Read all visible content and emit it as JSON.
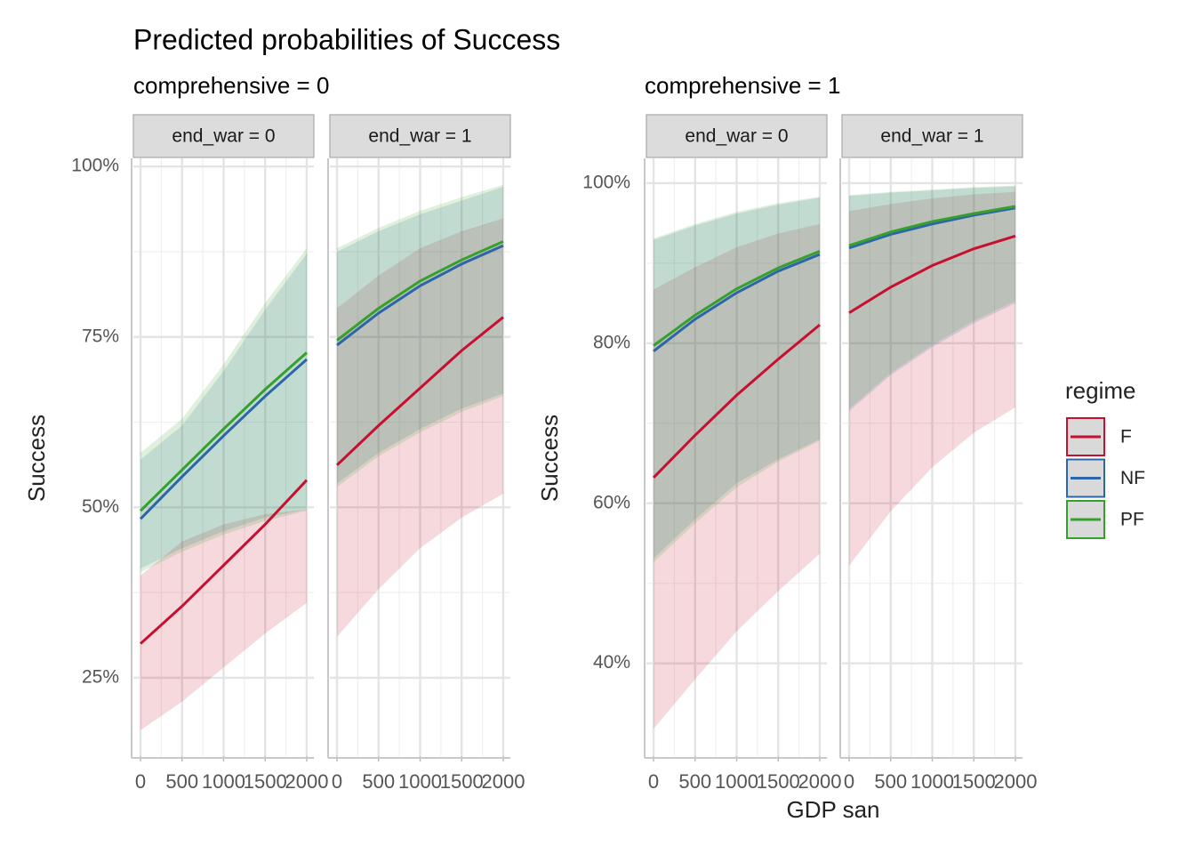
{
  "chart_data": [
    {
      "type": "line",
      "title": "Predicted probabilities of Success",
      "subtitle": "comprehensive = 0",
      "ylabel": "Success",
      "x": [
        0,
        500,
        1000,
        1500,
        2000
      ],
      "xlim": [
        -86,
        2086
      ],
      "xticks": [
        0,
        500,
        1000,
        1500,
        2000
      ],
      "ylim": [
        13.5,
        101.2
      ],
      "yticks": [
        {
          "value": 25,
          "label": "25%"
        },
        {
          "value": 50,
          "label": "50%"
        },
        {
          "value": 75,
          "label": "75%"
        },
        {
          "value": 100,
          "label": "100%"
        }
      ],
      "grid": true,
      "legend": {
        "title": "regime",
        "entries": [
          {
            "name": "F",
            "color": "#c8102e"
          },
          {
            "name": "NF",
            "color": "#2c66a8"
          },
          {
            "name": "PF",
            "color": "#35a02c"
          }
        ]
      },
      "panels": [
        {
          "strip": "end_war = 0",
          "series": [
            {
              "values": [
                30,
                35.5,
                41.5,
                47.5,
                54
              ],
              "lower": [
                17.3,
                21.5,
                26.5,
                31.5,
                36
              ],
              "upper": [
                40,
                45,
                47.5,
                49,
                49.7
              ]
            },
            {
              "values": [
                48.3,
                54.5,
                60.5,
                66.3,
                71.7
              ],
              "lower": [
                41,
                44,
                46.5,
                48.5,
                49.7
              ],
              "upper": [
                57,
                62,
                70,
                79,
                87.2
              ]
            },
            {
              "values": [
                49.5,
                55.5,
                61.5,
                67.3,
                72.7
              ],
              "lower": [
                40.5,
                43.5,
                46,
                48,
                49.5
              ],
              "upper": [
                58,
                63,
                71,
                80,
                88
              ]
            }
          ]
        },
        {
          "strip": "end_war = 1",
          "series": [
            {
              "values": [
                56.2,
                62,
                67.5,
                73,
                77.9
              ],
              "lower": [
                31,
                38,
                44,
                48.5,
                52
              ],
              "upper": [
                79.2,
                84,
                88,
                90.5,
                92.4
              ]
            },
            {
              "values": [
                73.8,
                78.5,
                82.5,
                85.7,
                88.4
              ],
              "lower": [
                53.5,
                58,
                61.5,
                64.5,
                66.7
              ],
              "upper": [
                87.5,
                90.5,
                93,
                95,
                97
              ]
            },
            {
              "values": [
                74.5,
                79.2,
                83.2,
                86.3,
                89
              ],
              "lower": [
                53,
                57.5,
                61,
                64,
                66.3
              ],
              "upper": [
                88,
                91,
                93.5,
                95.5,
                97.3
              ]
            }
          ]
        }
      ]
    },
    {
      "type": "line",
      "subtitle": "comprehensive = 1",
      "ylabel": "Success",
      "xlabel": "GDP san",
      "x": [
        0,
        500,
        1000,
        1500,
        2000
      ],
      "xlim": [
        -86,
        2086
      ],
      "xticks": [
        0,
        500,
        1000,
        1500,
        2000
      ],
      "ylim": [
        28.4,
        103.1
      ],
      "yticks": [
        {
          "value": 40,
          "label": "40%"
        },
        {
          "value": 60,
          "label": "60%"
        },
        {
          "value": 80,
          "label": "80%"
        },
        {
          "value": 100,
          "label": "100%"
        }
      ],
      "grid": true,
      "panels": [
        {
          "strip": "end_war = 0",
          "series": [
            {
              "values": [
                63.2,
                68.5,
                73.5,
                78,
                82.3
              ],
              "lower": [
                31.8,
                38,
                44,
                49,
                53.7
              ],
              "upper": [
                86.7,
                89.5,
                92,
                93.7,
                94.9
              ]
            },
            {
              "values": [
                79,
                83,
                86.3,
                89,
                91.1
              ],
              "lower": [
                53.1,
                58,
                62.5,
                65.5,
                68
              ],
              "upper": [
                92.9,
                94.7,
                96.2,
                97.3,
                98.2
              ]
            },
            {
              "values": [
                79.7,
                83.5,
                86.8,
                89.4,
                91.5
              ],
              "lower": [
                52.6,
                57.5,
                62,
                65.2,
                67.8
              ],
              "upper": [
                93.1,
                94.9,
                96.4,
                97.5,
                98.3
              ]
            }
          ]
        },
        {
          "strip": "end_war = 1",
          "series": [
            {
              "values": [
                83.8,
                87,
                89.7,
                91.8,
                93.4
              ],
              "lower": [
                52.2,
                59,
                64.5,
                68.8,
                72
              ],
              "upper": [
                96.5,
                97.4,
                98.1,
                98.6,
                98.9
              ]
            },
            {
              "values": [
                91.9,
                93.6,
                94.9,
                96,
                96.9
              ],
              "lower": [
                71.5,
                76,
                79.5,
                82.5,
                85
              ],
              "upper": [
                98.4,
                98.8,
                99.1,
                99.4,
                99.6
              ]
            },
            {
              "values": [
                92.2,
                93.9,
                95.2,
                96.2,
                97.1
              ],
              "lower": [
                71.8,
                76.3,
                79.8,
                82.8,
                85.3
              ],
              "upper": [
                98.5,
                98.9,
                99.2,
                99.5,
                99.7
              ]
            }
          ]
        }
      ]
    }
  ]
}
